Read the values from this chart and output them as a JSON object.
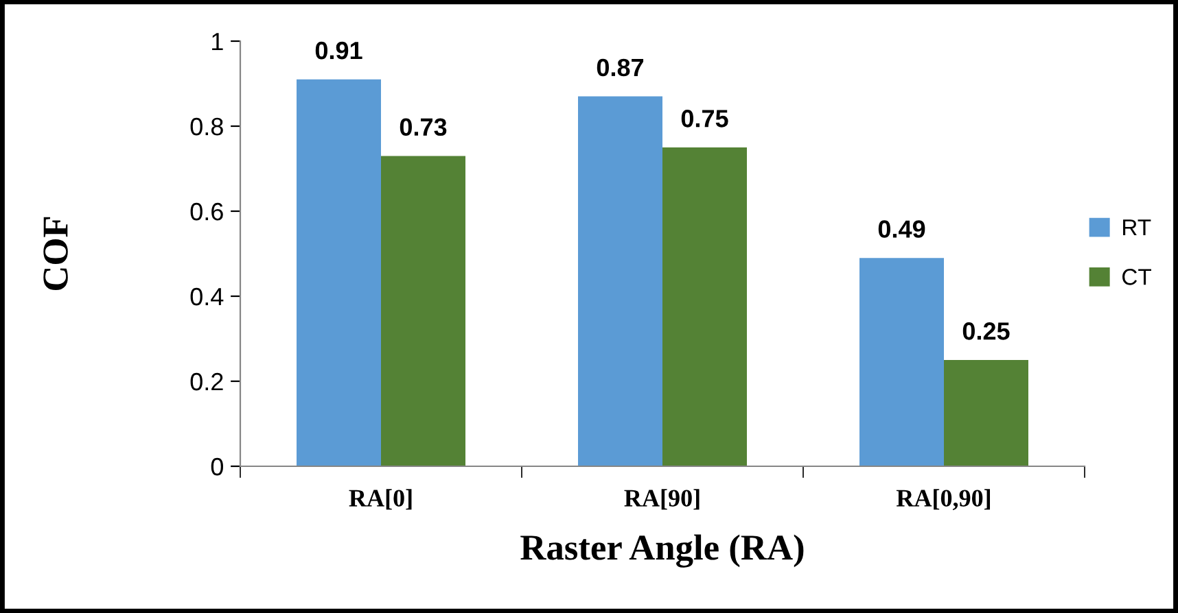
{
  "chart_data": {
    "type": "bar",
    "xlabel": "Raster Angle (RA)",
    "ylabel": "COF",
    "categories": [
      "RA[0]",
      "RA[90]",
      "RA[0,90]"
    ],
    "series": [
      {
        "name": "RT",
        "color": "#5b9bd5",
        "values": [
          0.91,
          0.87,
          0.49
        ]
      },
      {
        "name": "CT",
        "color": "#548235",
        "values": [
          0.73,
          0.75,
          0.25
        ]
      }
    ],
    "ylim": [
      0,
      1
    ],
    "yticks": [
      0,
      0.2,
      0.4,
      0.6,
      0.8,
      1
    ],
    "grid": false,
    "legend": "right",
    "data_labels": true
  }
}
